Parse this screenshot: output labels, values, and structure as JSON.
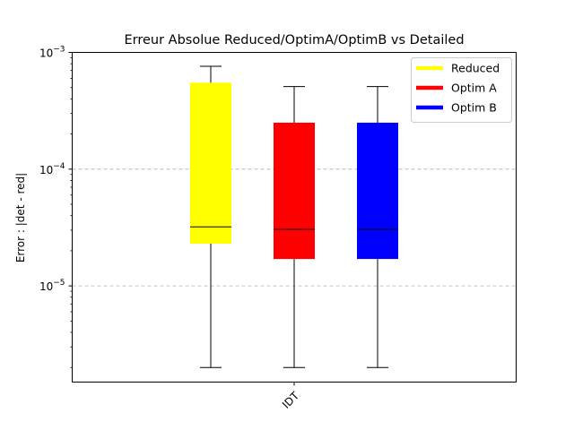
{
  "chart_data": {
    "type": "box",
    "title": "Erreur Absolue Reduced/OptimA/OptimB vs Detailed",
    "xlabel": "",
    "ylabel": "Error : |det - red|",
    "yscale": "log",
    "ylim": [
      1.5e-06,
      0.001
    ],
    "grid": "y-major-dashed",
    "legend_position": "top-right",
    "categories": [
      "IDT"
    ],
    "y_ticks": [
      {
        "value": 1e-05,
        "base": "10",
        "exp": "−5"
      },
      {
        "value": 0.0001,
        "base": "10",
        "exp": "−4"
      },
      {
        "value": 0.001,
        "base": "10",
        "exp": "−3"
      }
    ],
    "series": [
      {
        "name": "Reduced",
        "color": "#ffff00",
        "whisker_low": 2e-06,
        "q1": 2.3e-05,
        "median": 3.2e-05,
        "q3": 0.00055,
        "whisker_high": 0.00076
      },
      {
        "name": "Optim A",
        "color": "#ff0000",
        "whisker_low": 2e-06,
        "q1": 1.7e-05,
        "median": 3.05e-05,
        "q3": 0.00025,
        "whisker_high": 0.00051
      },
      {
        "name": "Optim B",
        "color": "#0000ff",
        "whisker_low": 2e-06,
        "q1": 1.7e-05,
        "median": 3.05e-05,
        "q3": 0.00025,
        "whisker_high": 0.00051
      }
    ]
  }
}
